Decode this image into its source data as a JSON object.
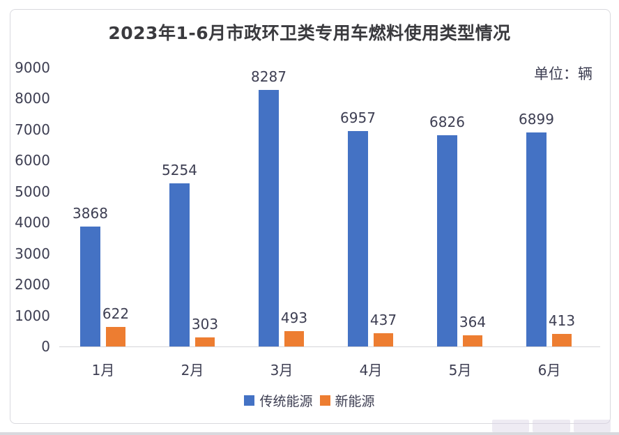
{
  "title": "2023年1-6月市政环卫类专用车燃料使用类型情况",
  "unit_label": "单位：辆",
  "colors": {
    "traditional": "#4472c4",
    "new_energy": "#ed7d31",
    "label_text": "#3d3e52",
    "axis_line": "#d4d4d8"
  },
  "chart_data": {
    "type": "bar",
    "title": "2023年1-6月市政环卫类专用车燃料使用类型情况",
    "categories": [
      "1月",
      "2月",
      "3月",
      "4月",
      "5月",
      "6月"
    ],
    "series": [
      {
        "name": "传统能源",
        "color": "#4472c4",
        "values": [
          3868,
          5254,
          8287,
          6957,
          6826,
          6899
        ]
      },
      {
        "name": "新能源",
        "color": "#ed7d31",
        "values": [
          622,
          303,
          493,
          437,
          364,
          413
        ]
      }
    ],
    "xlabel": "",
    "ylabel": "",
    "ylim": [
      0,
      9000
    ],
    "ytick_step": 1000,
    "grid": false,
    "legend_position": "bottom",
    "data_labels": true
  }
}
